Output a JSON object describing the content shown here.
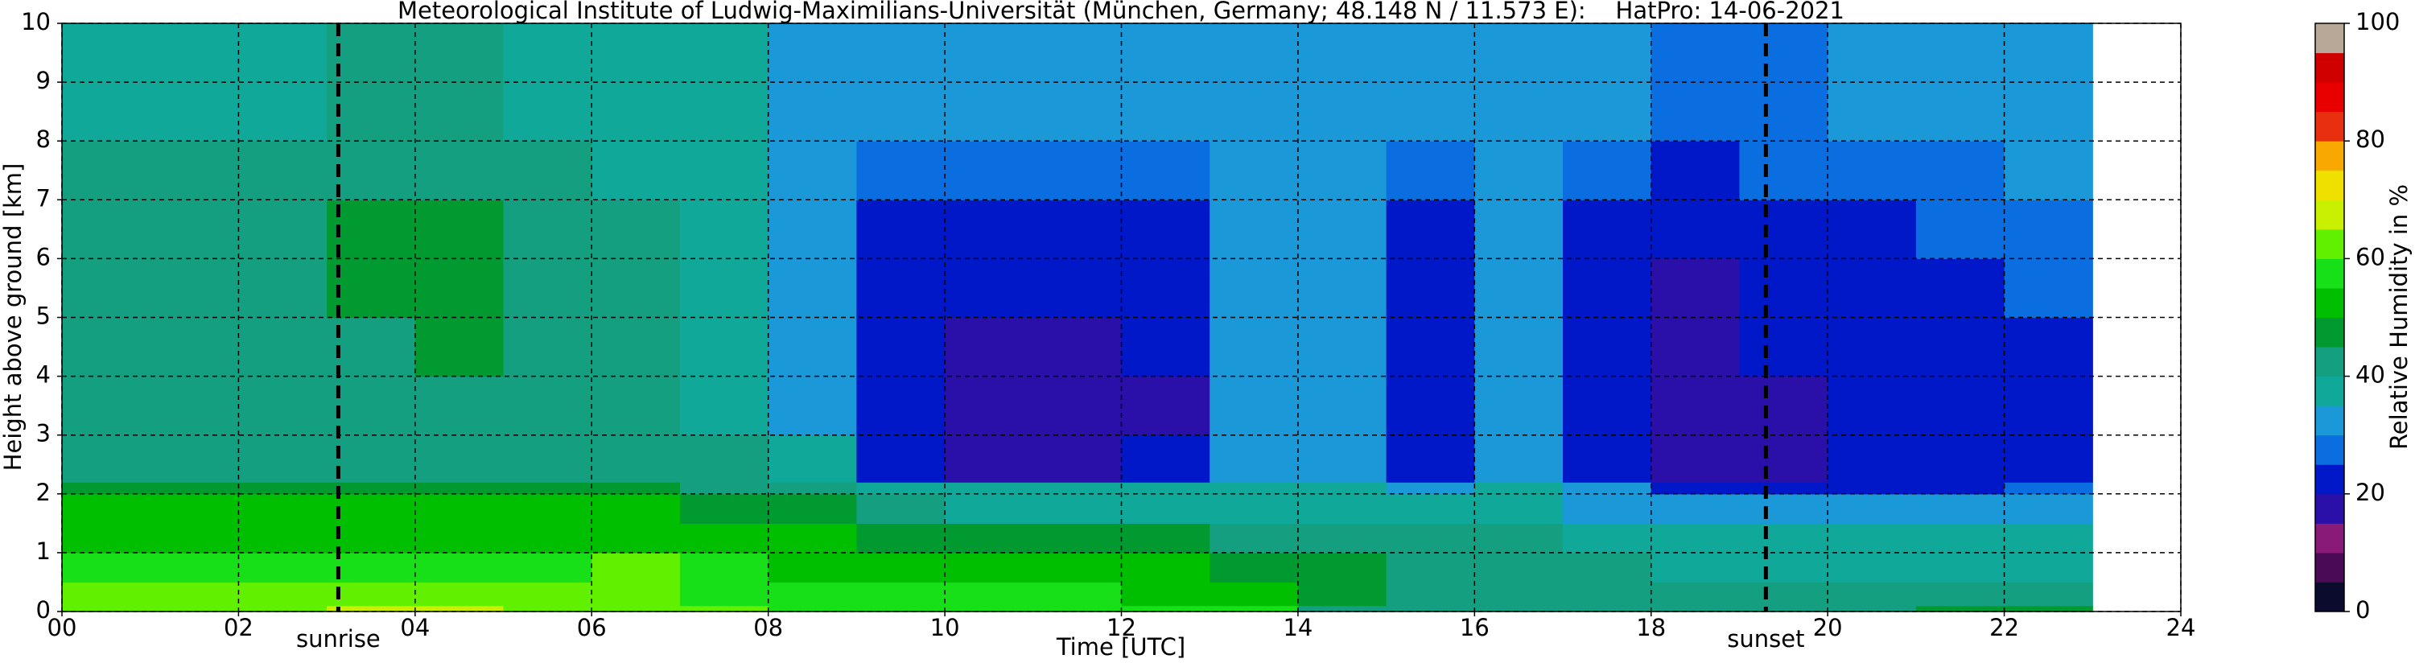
{
  "chart_data": {
    "type": "heatmap",
    "title": "Meteorological Institute of Ludwig-Maximilians-Universität (München, Germany; 48.148 N / 11.573 E):    HatPro: 14-06-2021",
    "x_label": "Time [UTC]",
    "y_label": "Height above ground [km]",
    "colorbar_label": "Relative Humidity in %",
    "xlim": [
      0,
      24
    ],
    "ylim": [
      0,
      10
    ],
    "xticks": [
      {
        "value": 0,
        "label": "00"
      },
      {
        "value": 2,
        "label": "02"
      },
      {
        "value": 4,
        "label": "04"
      },
      {
        "value": 6,
        "label": "06"
      },
      {
        "value": 8,
        "label": "08"
      },
      {
        "value": 10,
        "label": "10"
      },
      {
        "value": 12,
        "label": "12"
      },
      {
        "value": 14,
        "label": "14"
      },
      {
        "value": 16,
        "label": "16"
      },
      {
        "value": 18,
        "label": "18"
      },
      {
        "value": 20,
        "label": "20"
      },
      {
        "value": 22,
        "label": "22"
      },
      {
        "value": 24,
        "label": "24"
      }
    ],
    "yticks": [
      0,
      1,
      2,
      3,
      4,
      5,
      6,
      7,
      8,
      9,
      10
    ],
    "grid": true,
    "clim": [
      0,
      100
    ],
    "cticks": [
      0,
      20,
      40,
      60,
      80,
      100
    ],
    "colormap": [
      "#0b0b2e",
      "#4a0a55",
      "#8a1a78",
      "#2a10a8",
      "#0018c8",
      "#0a6ee0",
      "#1a98d8",
      "#10a898",
      "#14a080",
      "#009a30",
      "#00be00",
      "#18e018",
      "#60f000",
      "#c8f000",
      "#f0e000",
      "#f8a800",
      "#e83010",
      "#e80000",
      "#d00000",
      "#b8a898"
    ],
    "x_edges": [
      0,
      1,
      2,
      3,
      4,
      5,
      6,
      7,
      8,
      9,
      10,
      11,
      12,
      13,
      14,
      15,
      16,
      17,
      18,
      19,
      20,
      21,
      22,
      23
    ],
    "y_edges": [
      0,
      0.1,
      0.5,
      1,
      1.5,
      2,
      2.2,
      3,
      4,
      5,
      6,
      7,
      8,
      10
    ],
    "values": [
      [
        60,
        60,
        60,
        66,
        66,
        60,
        60,
        60,
        55,
        55,
        55,
        55,
        55,
        55,
        42,
        42,
        42,
        42,
        42,
        42,
        42,
        48,
        48
      ],
      [
        60,
        60,
        60,
        61,
        61,
        60,
        61,
        58,
        57,
        55,
        55,
        55,
        54,
        50,
        46,
        42,
        41,
        40,
        40,
        40,
        40,
        41,
        41
      ],
      [
        57,
        57,
        57,
        57,
        57,
        59,
        60,
        58,
        54,
        52,
        52,
        52,
        51,
        48,
        45,
        43,
        41,
        40,
        39,
        39,
        39,
        39,
        39
      ],
      [
        53,
        53,
        53,
        53,
        53,
        53,
        53,
        52,
        50,
        47,
        46,
        46,
        45,
        42,
        40,
        41,
        40,
        39,
        38,
        38,
        38,
        38,
        38
      ],
      [
        50,
        50,
        50,
        50,
        50,
        50,
        50,
        48,
        45,
        40,
        39,
        39,
        39,
        37,
        36,
        36,
        36,
        34,
        31,
        31,
        31,
        31,
        31
      ],
      [
        47,
        47,
        46,
        46,
        46,
        47,
        47,
        44,
        40,
        37,
        36,
        36,
        36,
        35,
        35,
        30,
        35,
        33,
        24,
        24,
        24,
        24,
        25
      ],
      [
        40,
        40,
        40,
        40,
        40,
        40,
        40,
        40,
        36,
        21,
        19,
        19,
        20,
        33,
        34,
        21,
        32,
        23,
        19,
        19,
        20,
        21,
        22
      ],
      [
        40,
        40,
        40,
        40,
        40,
        40,
        40,
        39,
        34,
        20,
        18,
        18,
        19,
        32,
        33,
        21,
        32,
        22,
        19,
        19,
        20,
        21,
        22
      ],
      [
        41,
        41,
        41,
        44,
        45,
        41,
        40,
        39,
        34,
        21,
        19,
        19,
        20,
        32,
        33,
        22,
        31,
        22,
        19,
        20,
        21,
        23,
        24
      ],
      [
        42,
        42,
        43,
        46,
        46,
        42,
        40,
        39,
        33,
        21,
        20,
        20,
        21,
        31,
        32,
        22,
        30,
        21,
        19,
        20,
        22,
        24,
        26
      ],
      [
        43,
        43,
        44,
        46,
        46,
        42,
        40,
        39,
        33,
        23,
        21,
        21,
        22,
        30,
        31,
        23,
        30,
        22,
        20,
        21,
        23,
        26,
        28
      ],
      [
        40,
        41,
        41,
        42,
        42,
        40,
        39,
        38,
        32,
        28,
        27,
        27,
        28,
        30,
        30,
        28,
        30,
        25,
        24,
        25,
        26,
        28,
        30
      ],
      [
        39,
        39,
        39,
        40,
        40,
        39,
        38,
        37,
        32,
        31,
        31,
        31,
        31,
        31,
        31,
        31,
        31,
        30,
        29,
        29,
        30,
        31,
        32
      ]
    ],
    "annotations": [
      {
        "text": "sunrise",
        "x": 3.13
      },
      {
        "text": "sunset",
        "x": 19.3
      }
    ]
  }
}
